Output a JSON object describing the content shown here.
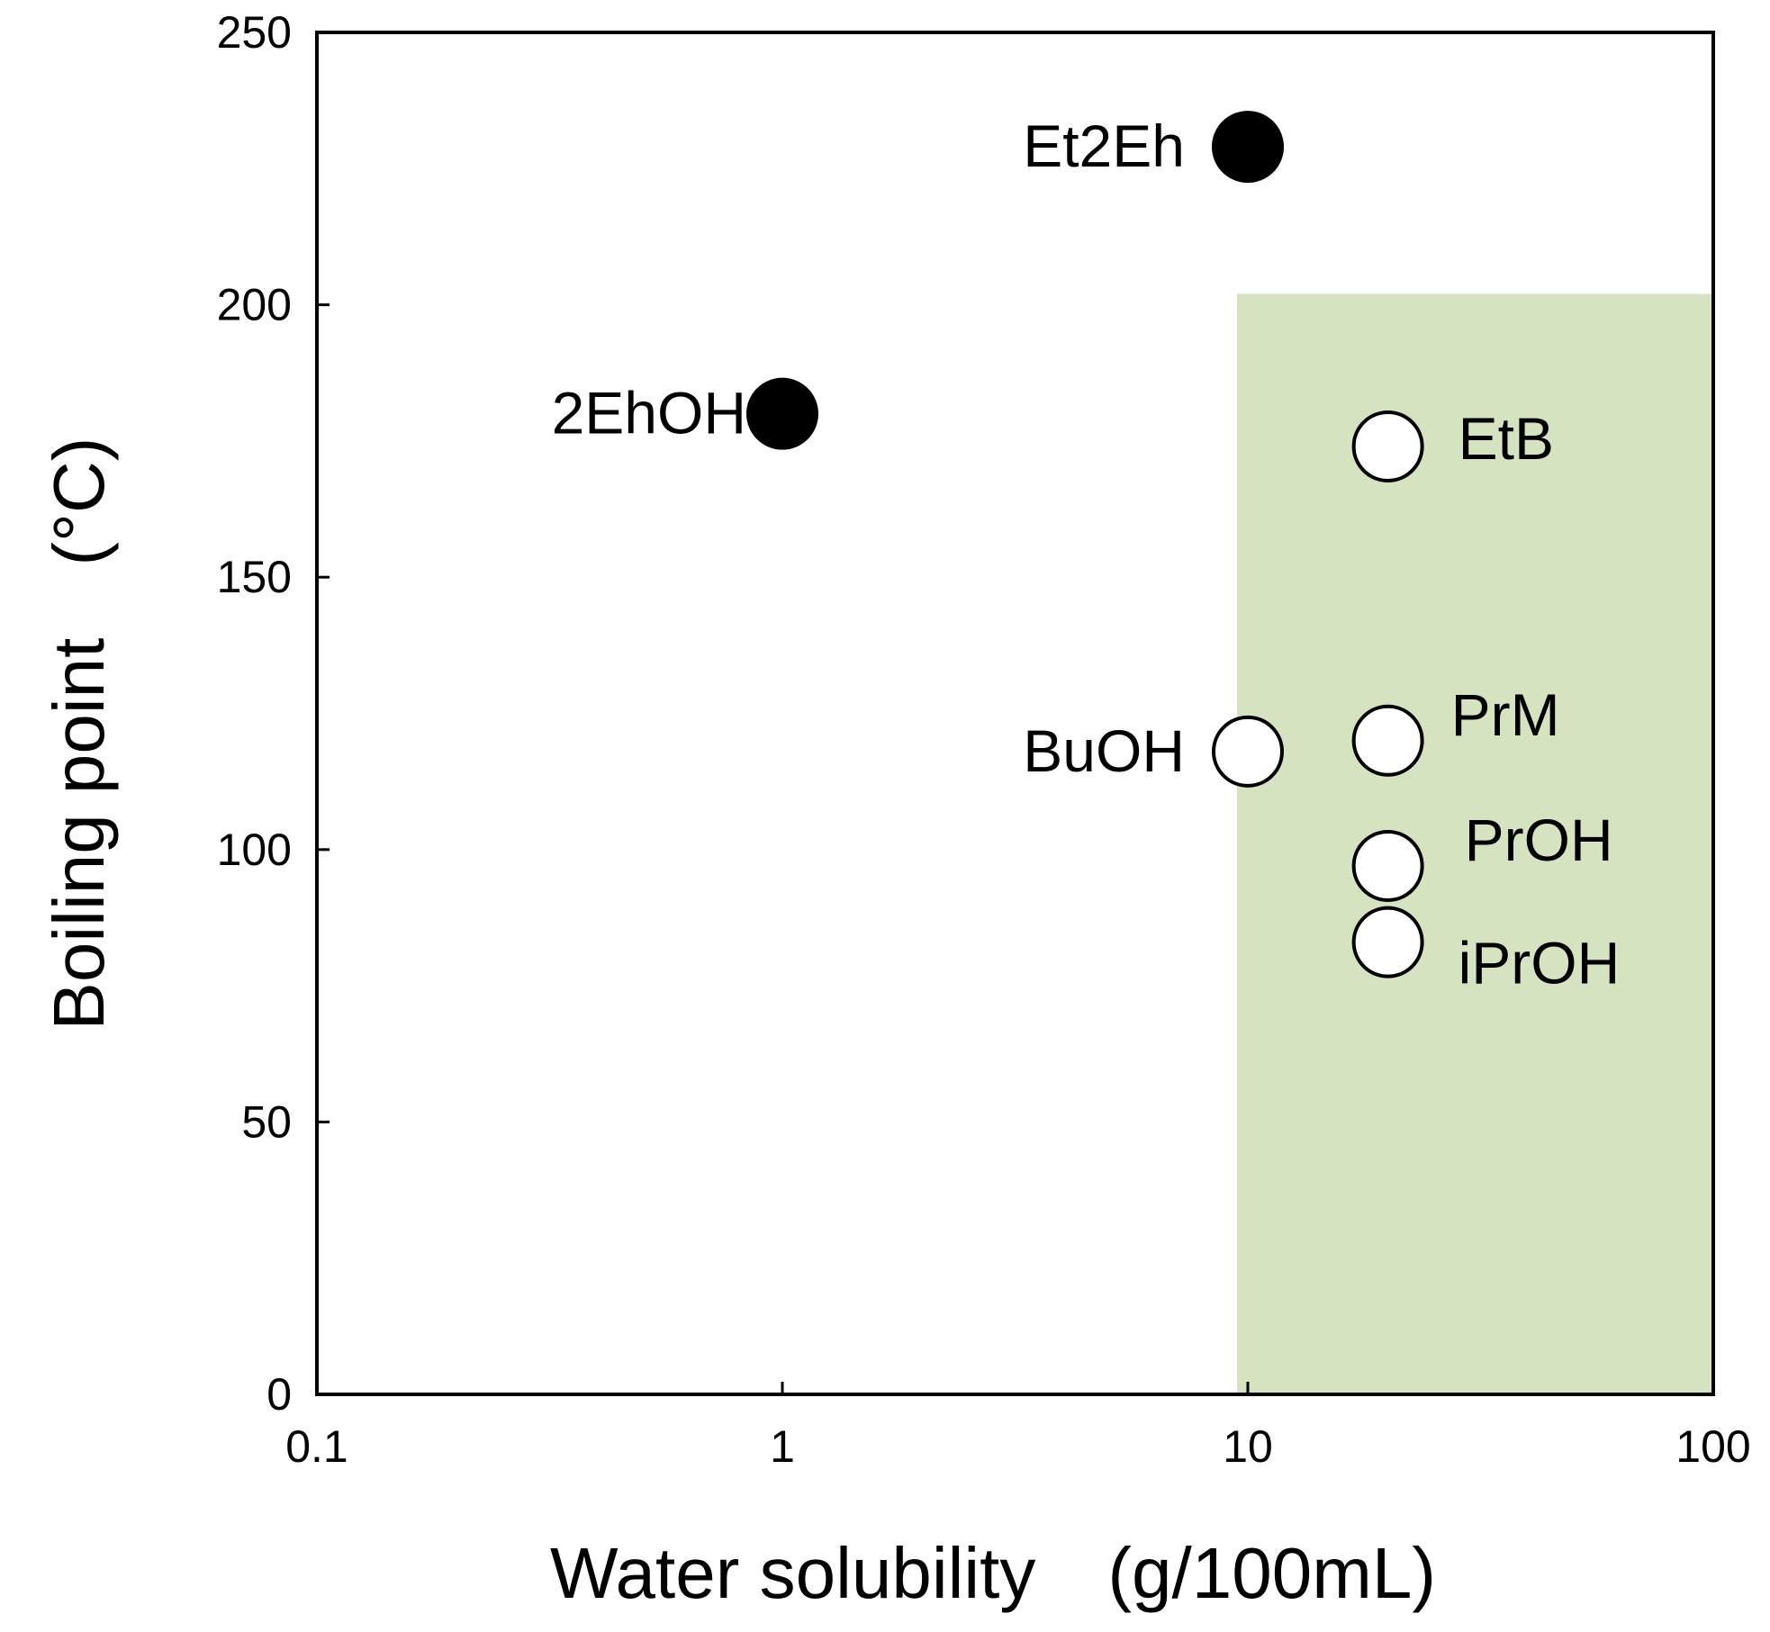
{
  "chart_data": {
    "type": "scatter",
    "title": "",
    "xlabel": "Water solubility　(g/100mL)",
    "ylabel": "Boiling point　(°C)",
    "xscale": "log",
    "xlim": [
      0.1,
      100
    ],
    "ylim": [
      0,
      250
    ],
    "xticks": [
      0.1,
      1,
      10,
      100
    ],
    "xtick_labels": [
      "0.1",
      "1",
      "10",
      "100"
    ],
    "yticks": [
      0,
      50,
      100,
      150,
      200,
      250
    ],
    "ytick_labels": [
      "0",
      "50",
      "100",
      "150",
      "200",
      "250"
    ],
    "grid": false,
    "legend": "none",
    "highlight_region": {
      "x": [
        10,
        100
      ],
      "y": [
        0,
        202
      ],
      "color": "#d6e3c0"
    },
    "points": [
      {
        "label": "Et2Eh",
        "x": 10,
        "y": 229,
        "filled": true
      },
      {
        "label": "2EhOH",
        "x": 1,
        "y": 180,
        "filled": true
      },
      {
        "label": "EtB",
        "x": 20,
        "y": 174,
        "filled": false
      },
      {
        "label": "BuOH",
        "x": 10,
        "y": 118,
        "filled": false
      },
      {
        "label": "PrM",
        "x": 20,
        "y": 120,
        "filled": false
      },
      {
        "label": "PrOH",
        "x": 20,
        "y": 97,
        "filled": false
      },
      {
        "label": "iPrOH",
        "x": 20,
        "y": 83,
        "filled": false
      }
    ]
  }
}
